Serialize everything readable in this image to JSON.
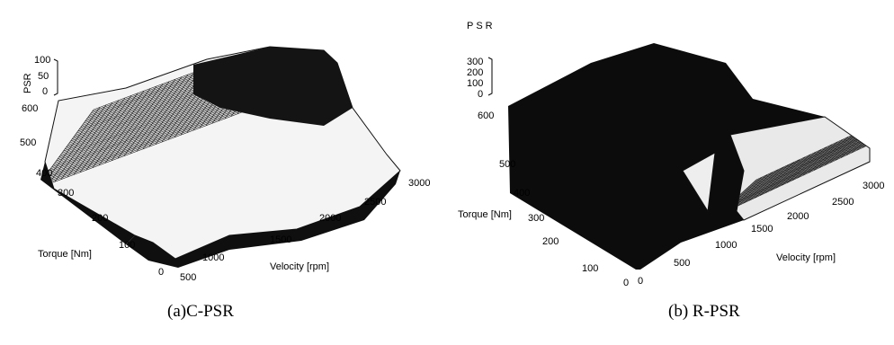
{
  "chart_data": [
    {
      "type": "surface",
      "caption": "(a)C-PSR",
      "zlabel": "PSR",
      "xlabel": "Velocity [rpm]",
      "ylabel": "Torque [Nm]",
      "ztick_labels": [
        "100",
        "50",
        "0"
      ],
      "xtick_labels": [
        "500",
        "1000",
        "1500",
        "2000",
        "2500",
        "3000"
      ],
      "ytick_labels": [
        "0",
        "100",
        "200",
        "300",
        "400",
        "500",
        "600"
      ],
      "xlim": [
        500,
        3000
      ],
      "ylim": [
        0,
        600
      ],
      "zlim": [
        0,
        100
      ],
      "colors": {
        "surface": "#f2f2f2",
        "mesh": "#1a1a1a",
        "dark": "#0a0a0a"
      }
    },
    {
      "type": "surface",
      "caption": "(b) R-PSR",
      "zlabel": "PSR",
      "xlabel": "Velocity [rpm]",
      "ylabel": "Torque [Nm]",
      "ztick_labels": [
        "300",
        "200",
        "100",
        "0"
      ],
      "xtick_labels": [
        "0",
        "500",
        "1000",
        "1500",
        "2000",
        "2500",
        "3000"
      ],
      "ytick_labels": [
        "0",
        "100",
        "200",
        "300",
        "400",
        "500",
        "600"
      ],
      "xlim": [
        0,
        3000
      ],
      "ylim": [
        0,
        600
      ],
      "zlim": [
        0,
        300
      ],
      "colors": {
        "surface": "#f2f2f2",
        "mesh": "#1a1a1a",
        "dark": "#0a0a0a"
      }
    }
  ]
}
